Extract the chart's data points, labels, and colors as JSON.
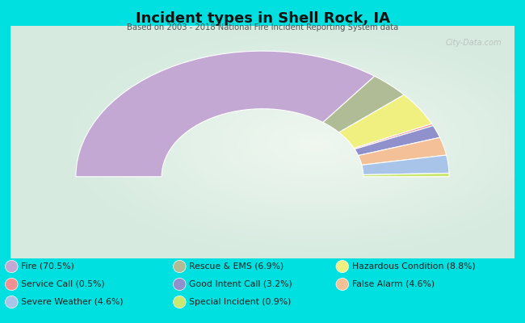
{
  "title": "Incident types in Shell Rock, IA",
  "subtitle": "Based on 2003 - 2018 National Fire Incident Reporting System data",
  "bg_outer": "#00e0e0",
  "watermark": "City-Data.com",
  "categories": [
    "Fire",
    "Rescue & EMS",
    "Hazardous Condition",
    "Service Call",
    "Good Intent Call",
    "False Alarm",
    "Severe Weather",
    "Special Incident"
  ],
  "values": [
    70.5,
    6.9,
    8.8,
    0.5,
    3.2,
    4.6,
    4.6,
    0.9
  ],
  "colors": [
    "#c4a8d4",
    "#b0bc96",
    "#f0f080",
    "#f09090",
    "#9090cc",
    "#f4c098",
    "#a8c4e8",
    "#c8e870"
  ],
  "legend_order": [
    0,
    3,
    6,
    1,
    4,
    7,
    2,
    5
  ],
  "legend_categories": [
    "Fire",
    "Service Call",
    "Severe Weather",
    "Rescue & EMS",
    "Good Intent Call",
    "Special Incident",
    "Hazardous Condition",
    "False Alarm"
  ],
  "legend_values": [
    70.5,
    0.5,
    4.6,
    6.9,
    3.2,
    0.9,
    8.8,
    4.6
  ],
  "legend_colors": [
    "#c4a8d4",
    "#f09090",
    "#a8c4e8",
    "#b0bc96",
    "#9090cc",
    "#c8e870",
    "#f0f080",
    "#f4c098"
  ],
  "outer_r": 1.0,
  "inner_r": 0.54
}
